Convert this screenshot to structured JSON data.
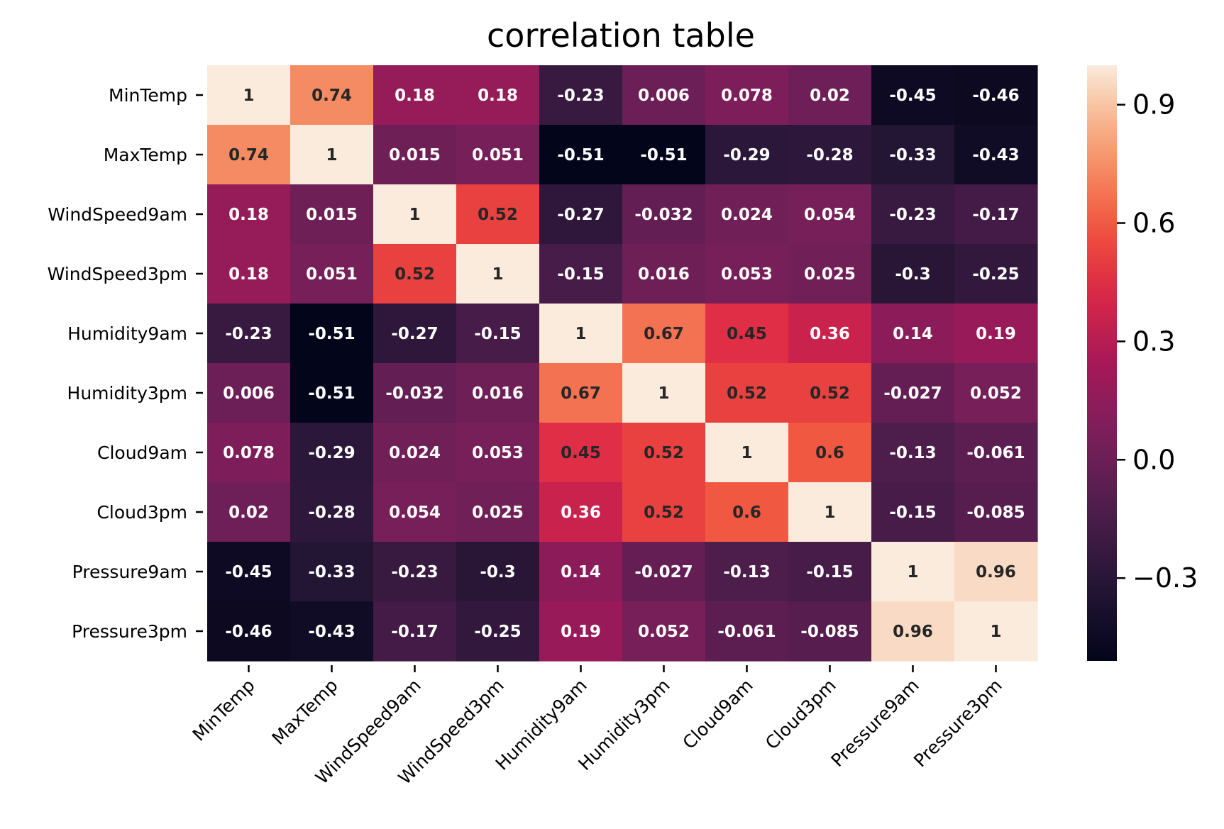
{
  "chart_data": {
    "type": "heatmap",
    "title": "correlation table",
    "rows": [
      "MinTemp",
      "MaxTemp",
      "WindSpeed9am",
      "WindSpeed3pm",
      "Humidity9am",
      "Humidity3pm",
      "Cloud9am",
      "Cloud3pm",
      "Pressure9am",
      "Pressure3pm"
    ],
    "cols": [
      "MinTemp",
      "MaxTemp",
      "WindSpeed9am",
      "WindSpeed3pm",
      "Humidity9am",
      "Humidity3pm",
      "Cloud9am",
      "Cloud3pm",
      "Pressure9am",
      "Pressure3pm"
    ],
    "values": [
      [
        1,
        0.74,
        0.18,
        0.18,
        -0.23,
        0.006,
        0.078,
        0.02,
        -0.45,
        -0.46
      ],
      [
        0.74,
        1,
        0.015,
        0.051,
        -0.51,
        -0.51,
        -0.29,
        -0.28,
        -0.33,
        -0.43
      ],
      [
        0.18,
        0.015,
        1,
        0.52,
        -0.27,
        -0.032,
        0.024,
        0.054,
        -0.23,
        -0.17
      ],
      [
        0.18,
        0.051,
        0.52,
        1,
        -0.15,
        0.016,
        0.053,
        0.025,
        -0.3,
        -0.25
      ],
      [
        -0.23,
        -0.51,
        -0.27,
        -0.15,
        1,
        0.67,
        0.45,
        0.36,
        0.14,
        0.19
      ],
      [
        0.006,
        -0.51,
        -0.032,
        0.016,
        0.67,
        1,
        0.52,
        0.52,
        -0.027,
        0.052
      ],
      [
        0.078,
        -0.29,
        0.024,
        0.053,
        0.45,
        0.52,
        1,
        0.6,
        -0.13,
        -0.061
      ],
      [
        0.02,
        -0.28,
        0.054,
        0.025,
        0.36,
        0.52,
        0.6,
        1,
        -0.15,
        -0.085
      ],
      [
        -0.45,
        -0.33,
        -0.23,
        -0.3,
        0.14,
        -0.027,
        -0.13,
        -0.15,
        1,
        0.96
      ],
      [
        -0.46,
        -0.43,
        -0.17,
        -0.25,
        0.19,
        0.052,
        -0.061,
        -0.085,
        0.96,
        1
      ]
    ],
    "labels": [
      [
        "1",
        "0.74",
        "0.18",
        "0.18",
        "-0.23",
        "0.006",
        "0.078",
        "0.02",
        "-0.45",
        "-0.46"
      ],
      [
        "0.74",
        "1",
        "0.015",
        "0.051",
        "-0.51",
        "-0.51",
        "-0.29",
        "-0.28",
        "-0.33",
        "-0.43"
      ],
      [
        "0.18",
        "0.015",
        "1",
        "0.52",
        "-0.27",
        "-0.032",
        "0.024",
        "0.054",
        "-0.23",
        "-0.17"
      ],
      [
        "0.18",
        "0.051",
        "0.52",
        "1",
        "-0.15",
        "0.016",
        "0.053",
        "0.025",
        "-0.3",
        "-0.25"
      ],
      [
        "-0.23",
        "-0.51",
        "-0.27",
        "-0.15",
        "1",
        "0.67",
        "0.45",
        "0.36",
        "0.14",
        "0.19"
      ],
      [
        "0.006",
        "-0.51",
        "-0.032",
        "0.016",
        "0.67",
        "1",
        "0.52",
        "0.52",
        "-0.027",
        "0.052"
      ],
      [
        "0.078",
        "-0.29",
        "0.024",
        "0.053",
        "0.45",
        "0.52",
        "1",
        "0.6",
        "-0.13",
        "-0.061"
      ],
      [
        "0.02",
        "-0.28",
        "0.054",
        "0.025",
        "0.36",
        "0.52",
        "0.6",
        "1",
        "-0.15",
        "-0.085"
      ],
      [
        "-0.45",
        "-0.33",
        "-0.23",
        "-0.3",
        "0.14",
        "-0.027",
        "-0.13",
        "-0.15",
        "1",
        "0.96"
      ],
      [
        "-0.46",
        "-0.43",
        "-0.17",
        "-0.25",
        "0.19",
        "0.052",
        "-0.061",
        "-0.085",
        "0.96",
        "1"
      ]
    ],
    "colorbar": {
      "range": [
        -0.51,
        1
      ],
      "ticks": [
        0.9,
        0.6,
        0.3,
        0.0,
        -0.3
      ],
      "tick_labels": [
        "0.9",
        "0.6",
        "0.3",
        "0.0",
        "−0.3"
      ]
    },
    "colormap": "rocket",
    "grid": false
  }
}
